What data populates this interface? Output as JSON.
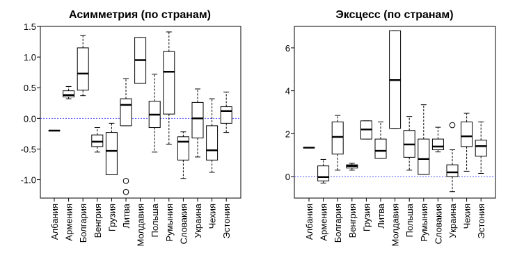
{
  "chart_data": [
    {
      "type": "boxplot",
      "title": "Асимметрия (по странам)",
      "categories": [
        "Албания",
        "Армения",
        "Болгария",
        "Венгрия",
        "Грузия",
        "Литва",
        "Молдавия",
        "Польша",
        "Румыния",
        "Словакия",
        "Украина",
        "Чехия",
        "Эстония"
      ],
      "ylim": [
        -1.3,
        1.5
      ],
      "yticks": [
        -1.0,
        -0.5,
        0.0,
        0.5,
        1.0,
        1.5
      ],
      "ytick_labels": [
        "-1.0",
        "-0.5",
        "0.0",
        "0.5",
        "1.0",
        "1.5"
      ],
      "reference_line": 0,
      "grid": false,
      "boxes": [
        {
          "whislo": -0.2,
          "q1": -0.2,
          "med": -0.2,
          "q3": -0.2,
          "whishi": -0.2,
          "fliers": []
        },
        {
          "whislo": 0.32,
          "q1": 0.35,
          "med": 0.38,
          "q3": 0.45,
          "whishi": 0.52,
          "fliers": []
        },
        {
          "whislo": 0.37,
          "q1": 0.46,
          "med": 0.73,
          "q3": 1.15,
          "whishi": 1.35,
          "fliers": []
        },
        {
          "whislo": -0.55,
          "q1": -0.46,
          "med": -0.38,
          "q3": -0.27,
          "whishi": -0.15,
          "fliers": []
        },
        {
          "whislo": -0.92,
          "q1": -0.92,
          "med": -0.53,
          "q3": -0.23,
          "whishi": -0.08,
          "fliers": []
        },
        {
          "whislo": -0.12,
          "q1": -0.12,
          "med": 0.22,
          "q3": 0.32,
          "whishi": 0.65,
          "fliers": [
            -1.02,
            -1.2
          ]
        },
        {
          "whislo": 0.57,
          "q1": 0.57,
          "med": 0.95,
          "q3": 1.32,
          "whishi": 1.32,
          "fliers": []
        },
        {
          "whislo": -0.55,
          "q1": -0.15,
          "med": 0.06,
          "q3": 0.28,
          "whishi": 0.72,
          "fliers": []
        },
        {
          "whislo": -0.42,
          "q1": 0.07,
          "med": 0.76,
          "q3": 1.09,
          "whishi": 1.41,
          "fliers": []
        },
        {
          "whislo": -0.98,
          "q1": -0.68,
          "med": -0.38,
          "q3": -0.3,
          "whishi": -0.22,
          "fliers": []
        },
        {
          "whislo": -0.63,
          "q1": -0.32,
          "med": 0.0,
          "q3": 0.26,
          "whishi": 0.48,
          "fliers": []
        },
        {
          "whislo": -0.88,
          "q1": -0.68,
          "med": -0.52,
          "q3": -0.12,
          "whishi": 0.32,
          "fliers": []
        },
        {
          "whislo": -0.23,
          "q1": -0.08,
          "med": 0.12,
          "q3": 0.19,
          "whishi": 0.43,
          "fliers": []
        }
      ]
    },
    {
      "type": "boxplot",
      "title": "Эксцесс (по странам)",
      "categories": [
        "Албания",
        "Армения",
        "Болгария",
        "Венгрия",
        "Грузия",
        "Литва",
        "Молдавия",
        "Польша",
        "Румыния",
        "Словакия",
        "Украина",
        "Чехия",
        "Эстония"
      ],
      "ylim": [
        -1.0,
        7.0
      ],
      "yticks": [
        0,
        2,
        4,
        6
      ],
      "ytick_labels": [
        "0",
        "2",
        "4",
        "6"
      ],
      "reference_line": 0,
      "grid": false,
      "boxes": [
        {
          "whislo": 1.35,
          "q1": 1.35,
          "med": 1.35,
          "q3": 1.35,
          "whishi": 1.35,
          "fliers": []
        },
        {
          "whislo": -0.3,
          "q1": -0.2,
          "med": -0.02,
          "q3": 0.5,
          "whishi": 0.8,
          "fliers": []
        },
        {
          "whislo": 0.3,
          "q1": 1.05,
          "med": 1.85,
          "q3": 2.55,
          "whishi": 2.85,
          "fliers": []
        },
        {
          "whislo": 0.3,
          "q1": 0.4,
          "med": 0.5,
          "q3": 0.55,
          "whishi": 0.62,
          "fliers": []
        },
        {
          "whislo": 1.75,
          "q1": 1.75,
          "med": 2.2,
          "q3": 2.6,
          "whishi": 2.6,
          "fliers": []
        },
        {
          "whislo": 0.85,
          "q1": 0.85,
          "med": 1.2,
          "q3": 1.75,
          "whishi": 2.55,
          "fliers": []
        },
        {
          "whislo": 2.25,
          "q1": 2.25,
          "med": 4.5,
          "q3": 6.8,
          "whishi": 6.8,
          "fliers": []
        },
        {
          "whislo": 0.3,
          "q1": 0.9,
          "med": 1.5,
          "q3": 2.15,
          "whishi": 2.8,
          "fliers": []
        },
        {
          "whislo": 0.1,
          "q1": 0.1,
          "med": 0.82,
          "q3": 1.75,
          "whishi": 3.35,
          "fliers": []
        },
        {
          "whislo": 1.15,
          "q1": 1.25,
          "med": 1.4,
          "q3": 1.75,
          "whishi": 2.3,
          "fliers": []
        },
        {
          "whislo": -0.7,
          "q1": 0.0,
          "med": 0.2,
          "q3": 0.55,
          "whishi": 1.25,
          "fliers": [
            2.4
          ]
        },
        {
          "whislo": 0.25,
          "q1": 1.4,
          "med": 1.88,
          "q3": 2.55,
          "whishi": 2.95,
          "fliers": []
        },
        {
          "whislo": 0.15,
          "q1": 0.95,
          "med": 1.42,
          "q3": 1.7,
          "whishi": 2.55,
          "fliers": []
        }
      ]
    }
  ]
}
